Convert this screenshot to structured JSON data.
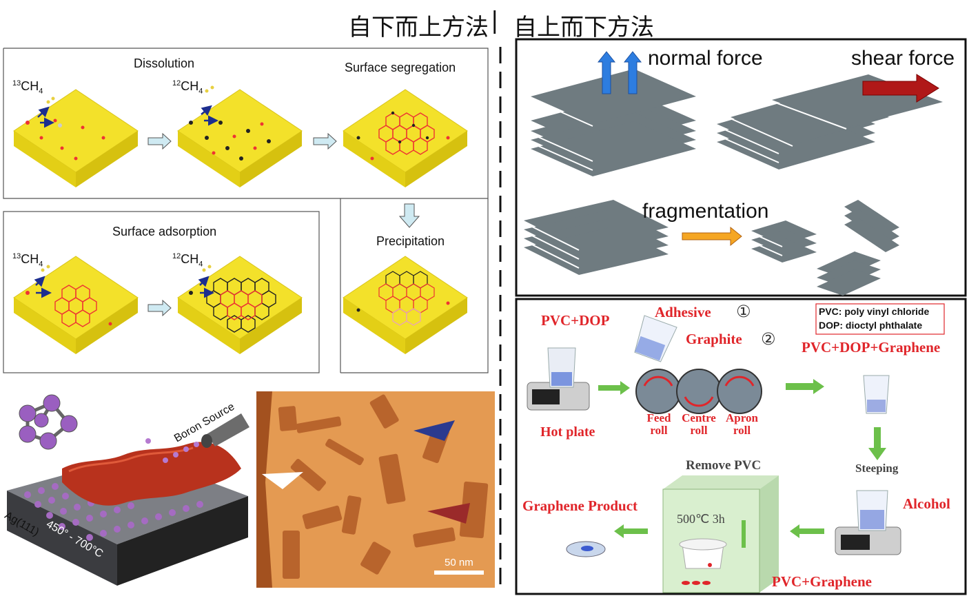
{
  "header": {
    "left_title": "自下而上方法",
    "separator": "|",
    "right_title": "自上而下方法"
  },
  "cvd_panel": {
    "dissolution": "Dissolution",
    "surface_segregation": "Surface segregation",
    "surface_adsorption": "Surface adsorption",
    "precipitation": "Precipitation",
    "gas_13_sup": "13",
    "gas_12_sup": "12",
    "gas_base": "CH",
    "gas_sub": "4"
  },
  "borophene_panel": {
    "boron_source": "Boron Source",
    "substrate": "Ag(111)",
    "temperature": "450° - 700°C"
  },
  "stm_panel": {
    "scale_bar": "50 nm"
  },
  "exfoliation_panel": {
    "normal_force": "normal force",
    "shear_force": "shear force",
    "fragmentation": "fragmentation"
  },
  "milling_panel": {
    "pvc_dop": "PVC+DOP",
    "adhesive": "Adhesive",
    "circle_1": "①",
    "graphite": "Graphite",
    "circle_2": "②",
    "legend_pvc": "PVC: poly vinyl chloride",
    "legend_dop": "DOP: dioctyl phthalate",
    "pvc_dop_graphene": "PVC+DOP+Graphene",
    "hot_plate": "Hot plate",
    "feed_roll_1": "Feed",
    "feed_roll_2": "roll",
    "centre_roll_1": "Centre",
    "centre_roll_2": "roll",
    "apron_roll_1": "Apron",
    "apron_roll_2": "roll",
    "steeping": "Steeping",
    "remove_pvc": "Remove PVC",
    "alcohol": "Alcohol",
    "graphene_product": "Graphene Product",
    "oven_temp": "500℃ 3h",
    "pvc_graphene": "PVC+Graphene"
  },
  "colors": {
    "yellow": "#f3e12a",
    "red_text": "#e0252a",
    "sheet_grey": "#6f7b80",
    "green_arrow": "#6cc04a",
    "blue_arrow": "#2d7de0"
  }
}
